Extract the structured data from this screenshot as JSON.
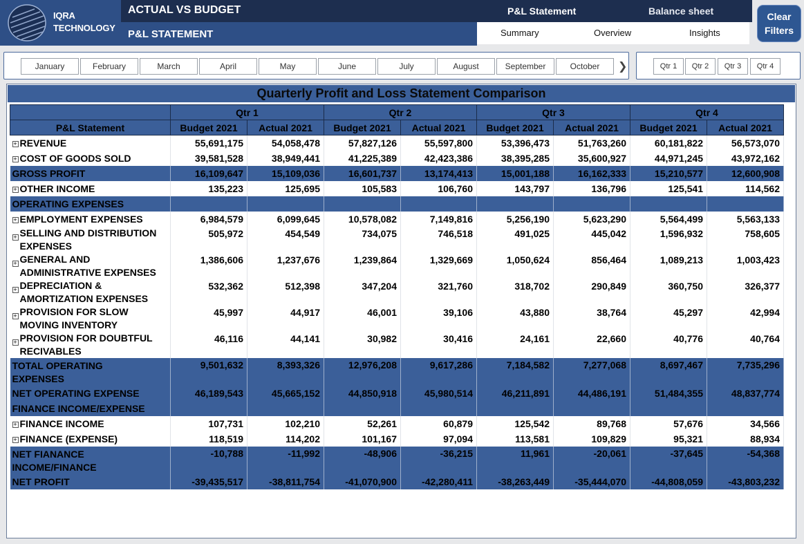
{
  "header": {
    "logo_line1": "IQRA",
    "logo_line2": "TECHNOLOGY",
    "title": "ACTUAL VS BUDGET",
    "subtitle": "P&L STATEMENT",
    "nav_active": "P&L Statement",
    "nav_inactive": "Balance sheet",
    "tabs": [
      "Summary",
      "Overview",
      "Insights"
    ],
    "clear_line1": "Clear",
    "clear_line2": "Filters"
  },
  "month_slicer": [
    "January",
    "February",
    "March",
    "April",
    "May",
    "June",
    "July",
    "August",
    "September",
    "October"
  ],
  "qtr_slicer": [
    "Qtr 1",
    "Qtr 2",
    "Qtr 3",
    "Qtr 4"
  ],
  "report": {
    "title": "Quarterly Profit and Loss Statement Comparison",
    "row_header": "P&L Statement",
    "quarters": [
      "Qtr 1",
      "Qtr 2",
      "Qtr 3",
      "Qtr 4"
    ],
    "col_budget": "Budget 2021",
    "col_actual": "Actual 2021",
    "rows": [
      {
        "type": "norm",
        "expand": true,
        "label": "REVENUE",
        "values": [
          "55,691,175",
          "54,058,478",
          "57,827,126",
          "55,597,800",
          "53,396,473",
          "51,763,260",
          "60,181,822",
          "56,573,070"
        ]
      },
      {
        "type": "norm",
        "expand": true,
        "label": "COST OF GOODS SOLD",
        "values": [
          "39,581,528",
          "38,949,441",
          "41,225,389",
          "42,423,386",
          "38,395,285",
          "35,600,927",
          "44,971,245",
          "43,972,162"
        ]
      },
      {
        "type": "sub",
        "expand": false,
        "label": "GROSS PROFIT",
        "values": [
          "16,109,647",
          "15,109,036",
          "16,601,737",
          "13,174,413",
          "15,001,188",
          "16,162,333",
          "15,210,577",
          "12,600,908"
        ]
      },
      {
        "type": "norm",
        "expand": true,
        "label": "OTHER INCOME",
        "values": [
          "135,223",
          "125,695",
          "105,583",
          "106,760",
          "143,797",
          "136,796",
          "125,541",
          "114,562"
        ]
      },
      {
        "type": "sec",
        "expand": false,
        "label": "OPERATING EXPENSES",
        "values": [
          "",
          "",
          "",
          "",
          "",
          "",
          "",
          ""
        ]
      },
      {
        "type": "norm",
        "expand": true,
        "label": "EMPLOYMENT EXPENSES",
        "values": [
          "6,984,579",
          "6,099,645",
          "10,578,082",
          "7,149,816",
          "5,256,190",
          "5,623,290",
          "5,564,499",
          "5,563,133"
        ]
      },
      {
        "type": "norm-tall",
        "expand": true,
        "label": "SELLING AND DISTRIBUTION",
        "label2": "EXPENSES",
        "values": [
          "505,972",
          "454,549",
          "734,075",
          "746,518",
          "491,025",
          "445,042",
          "1,596,932",
          "758,605"
        ]
      },
      {
        "type": "norm-tall",
        "expand": true,
        "label": "GENERAL AND",
        "label2": "ADMINISTRATIVE EXPENSES",
        "values": [
          "1,386,606",
          "1,237,676",
          "1,239,864",
          "1,329,669",
          "1,050,624",
          "856,464",
          "1,089,213",
          "1,003,423"
        ]
      },
      {
        "type": "norm-tall",
        "expand": true,
        "label": "DEPRECIATION &",
        "label2": "AMORTIZATION EXPENSES",
        "values": [
          "532,362",
          "512,398",
          "347,204",
          "321,760",
          "318,702",
          "290,849",
          "360,750",
          "326,377"
        ]
      },
      {
        "type": "norm-tall",
        "expand": true,
        "label": "PROVISION FOR SLOW",
        "label2": "MOVING INVENTORY",
        "values": [
          "45,997",
          "44,917",
          "46,001",
          "39,106",
          "43,880",
          "38,764",
          "45,297",
          "42,994"
        ]
      },
      {
        "type": "norm-tall",
        "expand": true,
        "label": "PROVISION FOR DOUBTFUL",
        "label2": "RECIVABLES",
        "values": [
          "46,116",
          "44,141",
          "30,982",
          "30,416",
          "24,161",
          "22,660",
          "40,776",
          "40,764"
        ]
      },
      {
        "type": "sub-tall",
        "expand": false,
        "label": "TOTAL OPERATING",
        "label2": "EXPENSES",
        "values": [
          "9,501,632",
          "8,393,326",
          "12,976,208",
          "9,617,286",
          "7,184,582",
          "7,277,068",
          "8,697,467",
          "7,735,296"
        ]
      },
      {
        "type": "sub",
        "expand": false,
        "label": "NET OPERATING EXPENSE",
        "values": [
          "46,189,543",
          "45,665,152",
          "44,850,918",
          "45,980,514",
          "46,211,891",
          "44,486,191",
          "51,484,355",
          "48,837,774"
        ]
      },
      {
        "type": "sec",
        "expand": false,
        "label": "FINANCE INCOME/EXPENSE",
        "values": [
          "",
          "",
          "",
          "",
          "",
          "",
          "",
          ""
        ]
      },
      {
        "type": "norm",
        "expand": true,
        "label": "FINANCE INCOME",
        "values": [
          "107,731",
          "102,210",
          "52,261",
          "60,879",
          "125,542",
          "89,768",
          "57,676",
          "34,566"
        ]
      },
      {
        "type": "norm",
        "expand": true,
        "label": "FINANCE (EXPENSE)",
        "values": [
          "118,519",
          "114,202",
          "101,167",
          "97,094",
          "113,581",
          "109,829",
          "95,321",
          "88,934"
        ]
      },
      {
        "type": "sub-tall",
        "expand": false,
        "label": "NET FIANANCE",
        "label2": "INCOME/FINANCE",
        "values": [
          "-10,788",
          "-11,992",
          "-48,906",
          "-36,215",
          "11,961",
          "-20,061",
          "-37,645",
          "-54,368"
        ]
      },
      {
        "type": "sub",
        "expand": false,
        "label": "NET PROFIT",
        "values": [
          "-39,435,517",
          "-38,811,754",
          "-41,070,900",
          "-42,280,411",
          "-38,263,449",
          "-35,444,070",
          "-44,808,059",
          "-43,803,232"
        ]
      }
    ]
  },
  "colors": {
    "header_dark": "#1d2e4f",
    "header_blue": "#2e4f86",
    "table_band": "#3b5f99"
  }
}
